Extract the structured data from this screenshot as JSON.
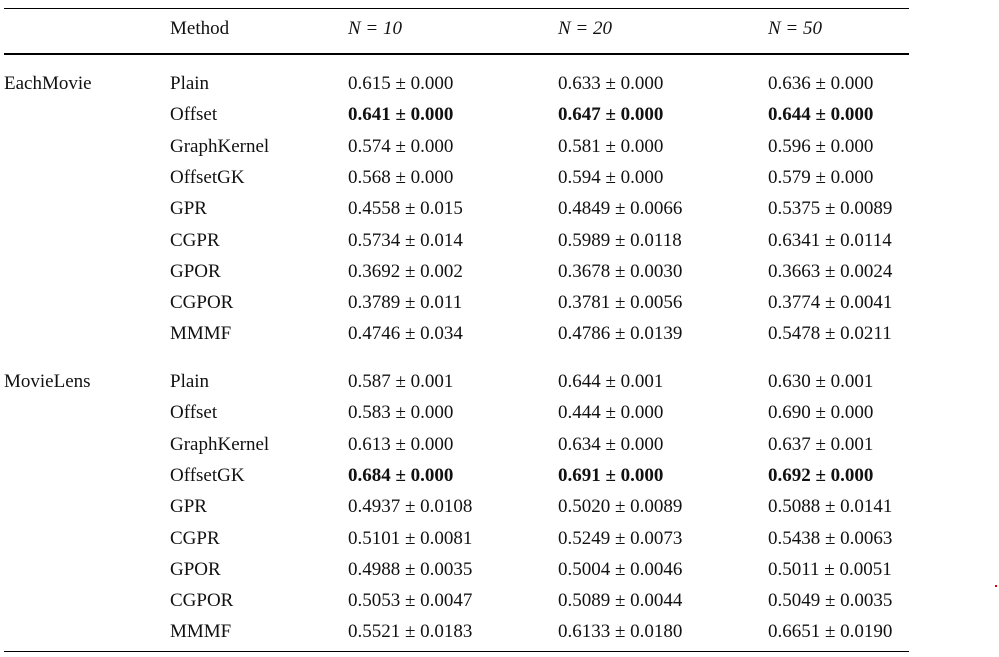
{
  "header": {
    "method": "Method",
    "n10": "N = 10",
    "n20": "N = 20",
    "n50": "N = 50"
  },
  "groups": [
    {
      "dataset": "EachMovie",
      "rows": [
        {
          "method": "Plain",
          "n10": "0.615 ± 0.000",
          "n20": "0.633 ± 0.000",
          "n50": "0.636 ± 0.000",
          "bold": false
        },
        {
          "method": "Offset",
          "n10": "0.641 ± 0.000",
          "n20": "0.647 ± 0.000",
          "n50": "0.644 ± 0.000",
          "bold": true
        },
        {
          "method": "GraphKernel",
          "n10": "0.574 ± 0.000",
          "n20": "0.581 ± 0.000",
          "n50": "0.596 ± 0.000",
          "bold": false
        },
        {
          "method": "OffsetGK",
          "n10": "0.568 ± 0.000",
          "n20": "0.594 ± 0.000",
          "n50": "0.579 ± 0.000",
          "bold": false
        },
        {
          "method": "GPR",
          "n10": "0.4558 ± 0.015",
          "n20": "0.4849 ± 0.0066",
          "n50": "0.5375 ± 0.0089",
          "bold": false
        },
        {
          "method": "CGPR",
          "n10": "0.5734 ± 0.014",
          "n20": "0.5989 ± 0.0118",
          "n50": "0.6341 ± 0.0114",
          "bold": false
        },
        {
          "method": "GPOR",
          "n10": "0.3692 ± 0.002",
          "n20": "0.3678 ± 0.0030",
          "n50": "0.3663 ± 0.0024",
          "bold": false
        },
        {
          "method": "CGPOR",
          "n10": "0.3789 ± 0.011",
          "n20": "0.3781 ± 0.0056",
          "n50": "0.3774 ± 0.0041",
          "bold": false
        },
        {
          "method": "MMMF",
          "n10": "0.4746 ± 0.034",
          "n20": "0.4786 ± 0.0139",
          "n50": "0.5478 ± 0.0211",
          "bold": false
        }
      ]
    },
    {
      "dataset": "MovieLens",
      "rows": [
        {
          "method": "Plain",
          "n10": "0.587 ± 0.001",
          "n20": "0.644 ± 0.001",
          "n50": "0.630 ± 0.001",
          "bold": false
        },
        {
          "method": "Offset",
          "n10": "0.583 ± 0.000",
          "n20": "0.444 ± 0.000",
          "n50": "0.690 ± 0.000",
          "bold": false
        },
        {
          "method": "GraphKernel",
          "n10": "0.613 ± 0.000",
          "n20": "0.634 ± 0.000",
          "n50": "0.637 ± 0.001",
          "bold": false
        },
        {
          "method": "OffsetGK",
          "n10": "0.684 ± 0.000",
          "n20": "0.691 ± 0.000",
          "n50": "0.692 ± 0.000",
          "bold": true
        },
        {
          "method": "GPR",
          "n10": "0.4937 ± 0.0108",
          "n20": "0.5020 ± 0.0089",
          "n50": "0.5088 ± 0.0141",
          "bold": false
        },
        {
          "method": "CGPR",
          "n10": "0.5101 ± 0.0081",
          "n20": "0.5249 ± 0.0073",
          "n50": "0.5438 ± 0.0063",
          "bold": false
        },
        {
          "method": "GPOR",
          "n10": "0.4988 ± 0.0035",
          "n20": "0.5004 ± 0.0046",
          "n50": "0.5011 ± 0.0051",
          "bold": false
        },
        {
          "method": "CGPOR",
          "n10": "0.5053 ± 0.0047",
          "n20": "0.5089 ± 0.0044",
          "n50": "0.5049 ± 0.0035",
          "bold": false
        },
        {
          "method": "MMMF",
          "n10": "0.5521 ± 0.0183",
          "n20": "0.6133 ± 0.0180",
          "n50": "0.6651 ± 0.0190",
          "bold": false
        }
      ]
    }
  ]
}
